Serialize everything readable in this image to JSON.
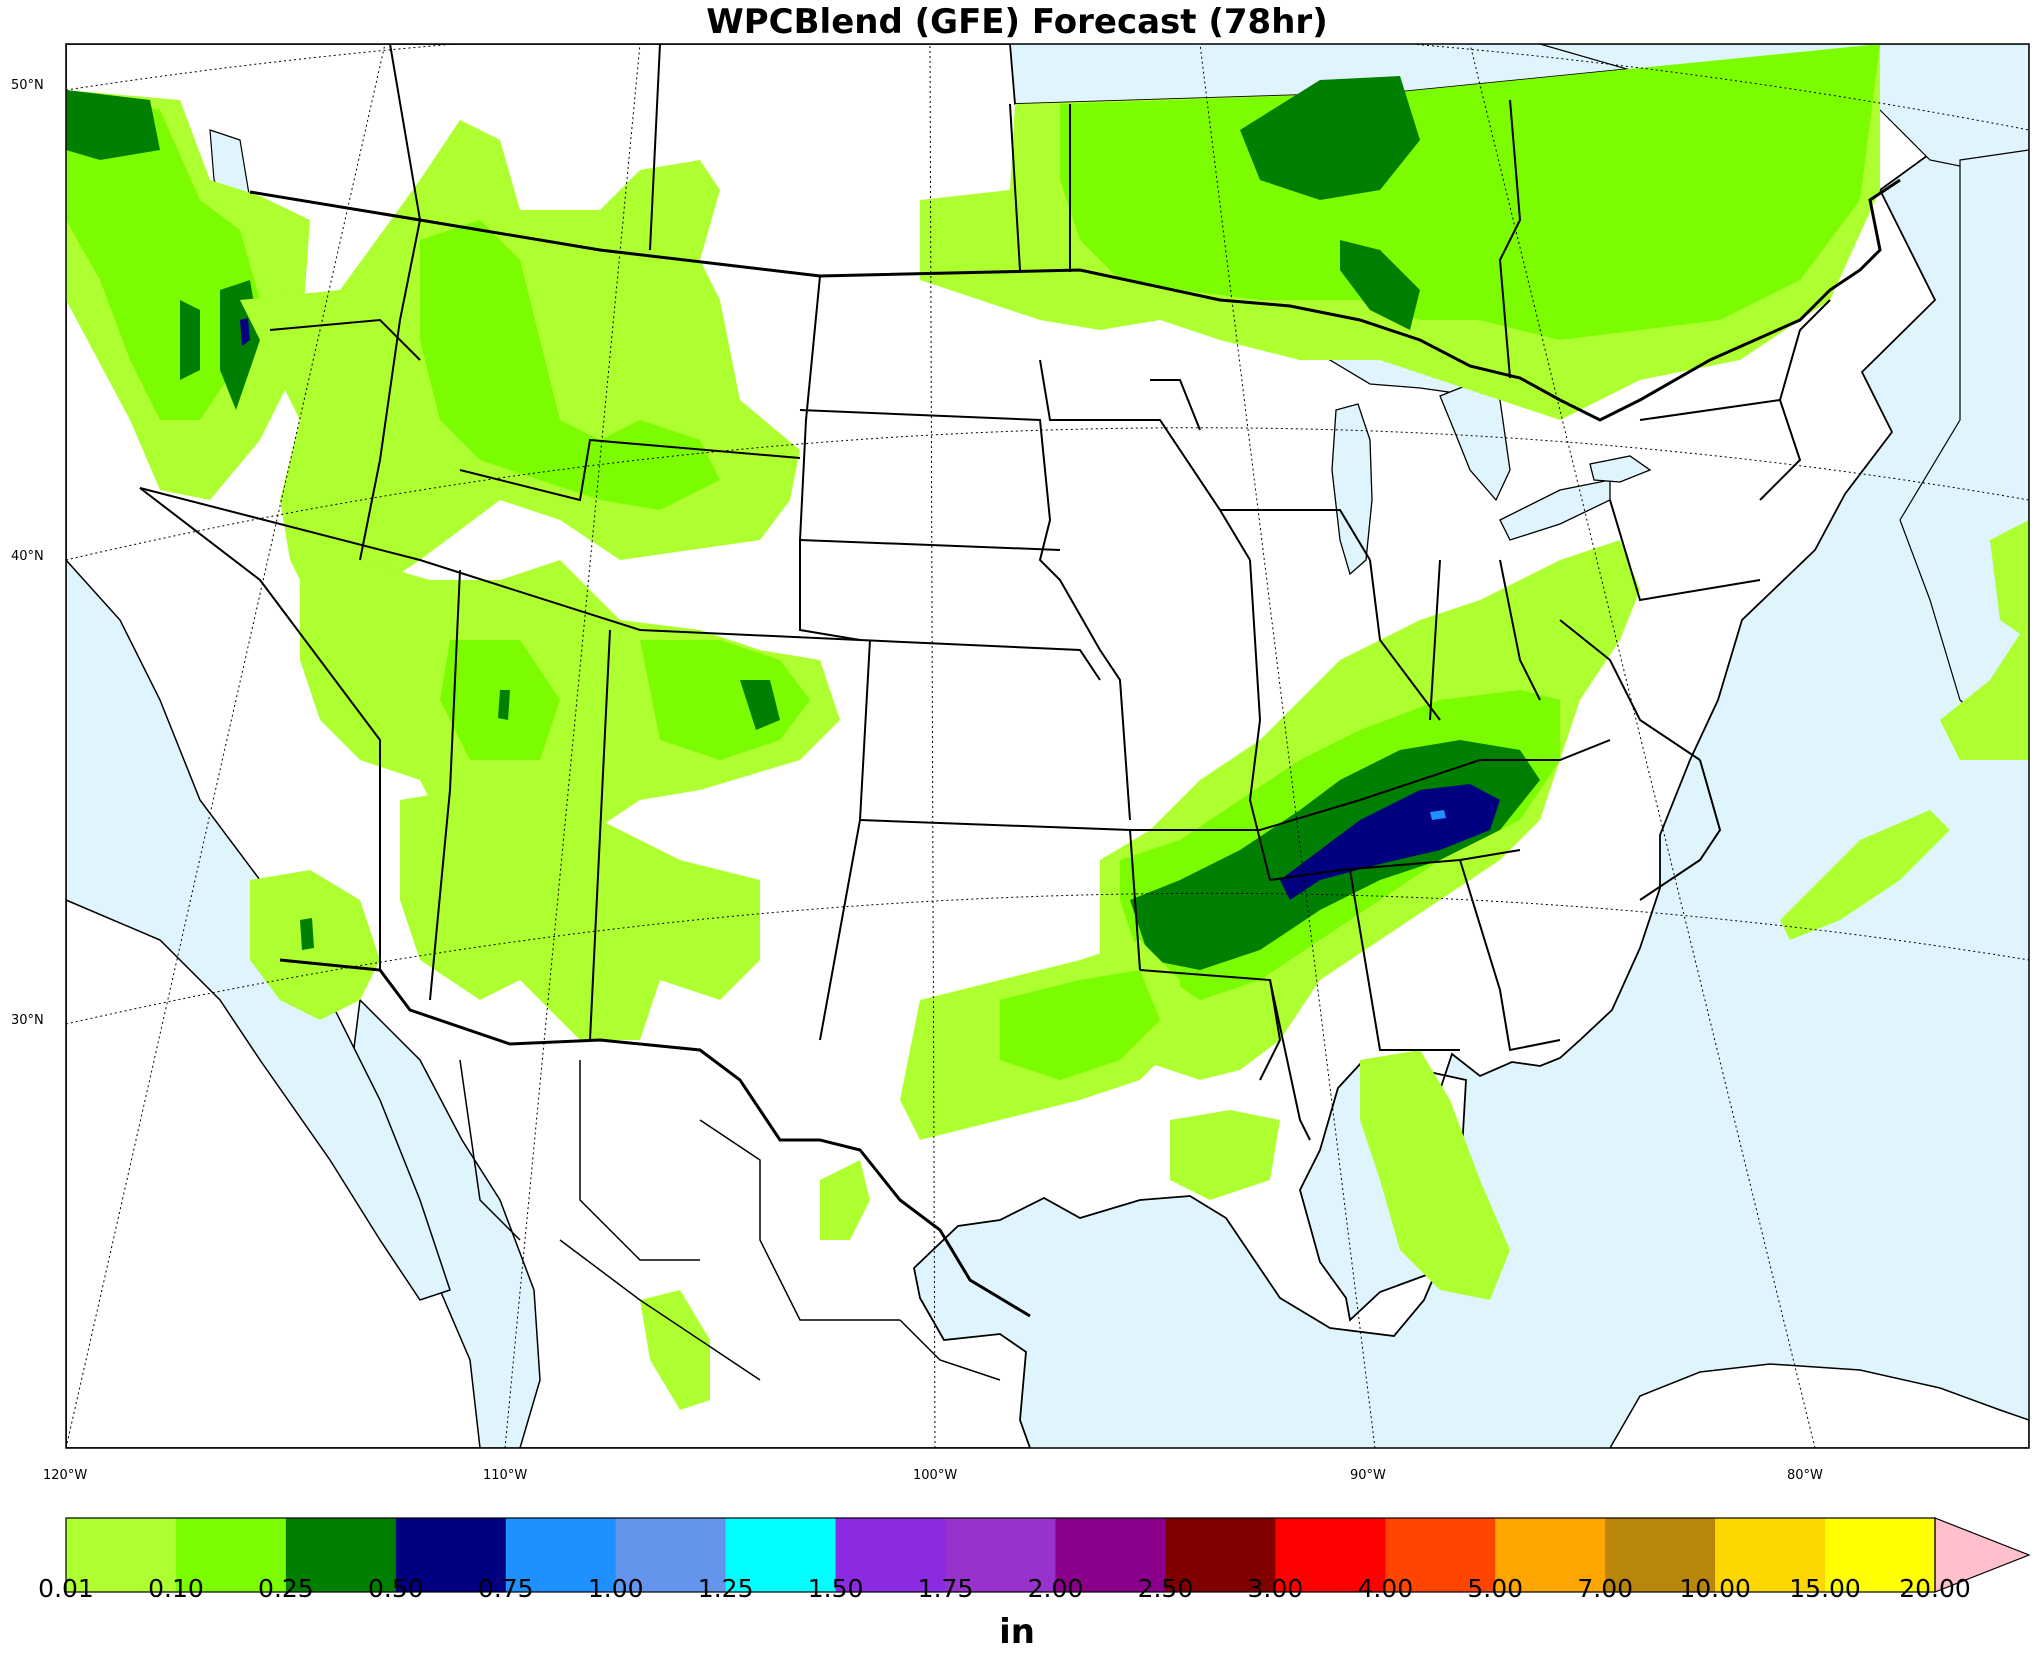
{
  "title": "WPCBlend (GFE) Forecast (78hr)",
  "map": {
    "lat_labels": [
      "50°N",
      "40°N",
      "30°N"
    ],
    "lon_labels": [
      "120°W",
      "110°W",
      "100°W",
      "90°W",
      "80°W"
    ],
    "colors": {
      "ocean": "#dff4fd",
      "land": "#ffffff",
      "boundary": "#000000"
    },
    "precip_regions": [
      {
        "name": "pacific-northwest",
        "level": 1
      },
      {
        "name": "cascades-core",
        "level": 3
      },
      {
        "name": "northern-rockies",
        "level": 1
      },
      {
        "name": "great-basin-utah",
        "level": 1
      },
      {
        "name": "colorado-rockies",
        "level": 1
      },
      {
        "name": "southwest-arizona-nm",
        "level": 1
      },
      {
        "name": "southern-california",
        "level": 1
      },
      {
        "name": "canadian-prairies",
        "level": 2
      },
      {
        "name": "ontario-quebec",
        "level": 2
      },
      {
        "name": "ohio-valley-tennessee",
        "level": 3
      },
      {
        "name": "tennessee-core",
        "level": 4
      },
      {
        "name": "tennessee-peak",
        "level": 5
      },
      {
        "name": "gulf-coast-texas",
        "level": 2
      },
      {
        "name": "florida-panhandle",
        "level": 1
      },
      {
        "name": "atlantic-offshore",
        "level": 1
      },
      {
        "name": "mexico-interior",
        "level": 1
      }
    ]
  },
  "colorbar": {
    "units": "in",
    "bins": [
      {
        "color": "#adff2f"
      },
      {
        "color": "#7cfc00"
      },
      {
        "color": "#007f00"
      },
      {
        "color": "#000080"
      },
      {
        "color": "#1e90ff"
      },
      {
        "color": "#6495ed"
      },
      {
        "color": "#00ffff"
      },
      {
        "color": "#8a2be2"
      },
      {
        "color": "#9932cc"
      },
      {
        "color": "#8b008b"
      },
      {
        "color": "#800000"
      },
      {
        "color": "#ff0000"
      },
      {
        "color": "#ff4500"
      },
      {
        "color": "#ffa500"
      },
      {
        "color": "#b8860b"
      },
      {
        "color": "#ffd700"
      },
      {
        "color": "#ffff00"
      }
    ],
    "extend_color": "#ffc0cb",
    "ticks": [
      "0.01",
      "0.10",
      "0.25",
      "0.50",
      "0.75",
      "1.00",
      "1.25",
      "1.50",
      "1.75",
      "2.00",
      "2.50",
      "3.00",
      "4.00",
      "5.00",
      "7.00",
      "10.00",
      "15.00",
      "20.00"
    ]
  }
}
